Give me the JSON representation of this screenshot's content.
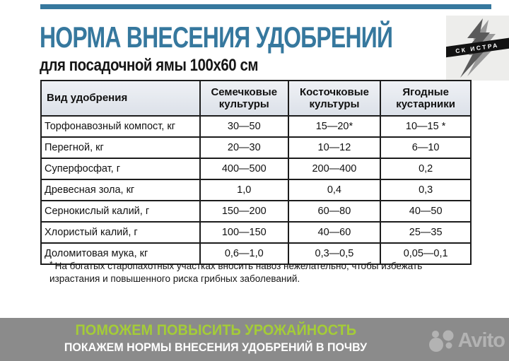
{
  "header": {
    "title": "НОРМА ВНЕСЕНИЯ УДОБРЕНИЙ",
    "subtitle": "для посадочной ямы 100x60 см",
    "accent_color": "#36789e"
  },
  "logo": {
    "label": "СК ИСТРА",
    "panel_bg": "#ededeb",
    "band_color": "#121212"
  },
  "table": {
    "columns": [
      "Вид удобрения",
      "Семечковые культуры",
      "Косточковые культуры",
      "Ягодные кустарники"
    ],
    "rows": [
      [
        "Торфонавозный компост, кг",
        "30—50",
        "15—20*",
        "10—15 *"
      ],
      [
        "Перегной, кг",
        "20—30",
        "10—12",
        "6—10"
      ],
      [
        "Суперфосфат, г",
        "400—500",
        "200—400",
        "0,2"
      ],
      [
        "Древесная зола, кг",
        "1,0",
        "0,4",
        "0,3"
      ],
      [
        "Сернокислый калий, г",
        "150—200",
        "60—80",
        "40—50"
      ],
      [
        "Хлористый калий, г",
        "100—150",
        "40—60",
        "25—35"
      ],
      [
        "Доломитовая мука, кг",
        "0,6—1,0",
        "0,3—0,5",
        "0,05—0,1"
      ]
    ],
    "header_bg": "#e4e9f0"
  },
  "footnote": {
    "marker": "*",
    "text": "На богатых старопахотных участках вносить навоз нежелательно, чтобы избежать израстания и повышенного риска грибных заболеваний."
  },
  "footer": {
    "bg": "#8b8b8b",
    "line1": "ПОМОЖЕМ ПОВЫСИТЬ УРОЖАЙНОСТЬ",
    "line1_color": "#a4cc37",
    "line2": "ПОКАЖЕМ НОРМЫ ВНЕСЕНИЯ УДОБРЕНИЙ В ПОЧВУ",
    "line2_color": "#ffffff",
    "watermark": "Avito"
  }
}
